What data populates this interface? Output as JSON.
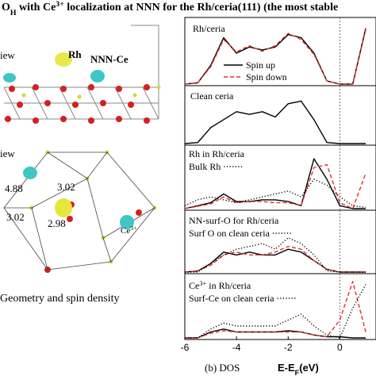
{
  "title_parts": [
    {
      "text": "O"
    },
    {
      "text": "H",
      "style": "sub"
    },
    {
      "text": " with Ce"
    },
    {
      "text": "3+",
      "style": "sup"
    },
    {
      "text": " localization at NNN for the Rh/ceria(111) (the most stable"
    }
  ],
  "structure": {
    "side_view": "iew",
    "rh": "Rh",
    "nnn_ce": "NNN-Ce",
    "top_view": "iew",
    "d1": "4.88",
    "d2": "3.02",
    "d3": "3.02",
    "d4": "2.98",
    "ce_parts": [
      {
        "text": "Ce"
      },
      {
        "text": "3+",
        "style": "sup"
      }
    ],
    "caption": "Geometry and spin density"
  },
  "dos_caption": "(b) DOS",
  "x_label_parts": [
    {
      "text": "E-E"
    },
    {
      "text": "F",
      "style": "sub"
    },
    {
      "text": "(eV)"
    }
  ],
  "chart_data": [
    {
      "type": "line",
      "label_parts": [
        {
          "text": "Rh/ceria"
        }
      ],
      "xlim": [
        -6,
        1.4
      ],
      "ylim": [
        0,
        1
      ],
      "vline": 0,
      "x": [
        -6,
        -5.5,
        -5,
        -4.5,
        -4,
        -3.5,
        -3,
        -2.5,
        -2,
        -1.5,
        -1,
        -0.5,
        0,
        0.5,
        1
      ],
      "series": [
        {
          "name": "Spin up",
          "color": "#000000",
          "dash": "solid",
          "values": [
            0,
            0.02,
            0.3,
            0.75,
            0.5,
            0.6,
            0.55,
            0.6,
            0.8,
            0.75,
            0.5,
            0.05,
            0,
            0,
            0.9
          ]
        },
        {
          "name": "Spin down",
          "color": "#e0302a",
          "dash": "dashed",
          "values": [
            0,
            0.02,
            0.28,
            0.72,
            0.52,
            0.62,
            0.53,
            0.62,
            0.82,
            0.72,
            0.48,
            0.05,
            0,
            0,
            0.88
          ]
        }
      ]
    },
    {
      "type": "line",
      "label_parts": [
        {
          "text": "Clean ceria"
        }
      ],
      "xlim": [
        -6,
        1.4
      ],
      "ylim": [
        0,
        1
      ],
      "vline": 0,
      "x": [
        -6,
        -5.5,
        -5,
        -4.5,
        -4,
        -3.5,
        -3,
        -2.5,
        -2,
        -1.5,
        -1,
        -0.5,
        0,
        0.5,
        1
      ],
      "series": [
        {
          "color": "#000000",
          "dash": "solid",
          "values": [
            0,
            0.02,
            0.3,
            0.45,
            0.6,
            0.55,
            0.6,
            0.5,
            0.75,
            0.8,
            0.45,
            0.02,
            0,
            0,
            0
          ]
        }
      ]
    },
    {
      "type": "line",
      "label_parts": [
        {
          "text": "Rh in Rh/ceria"
        }
      ],
      "legend": [
        "Bulk Rh"
      ],
      "xlim": [
        -6,
        1.4
      ],
      "ylim": [
        0,
        1
      ],
      "vline": 0,
      "x": [
        -6,
        -5.5,
        -5,
        -4.5,
        -4,
        -3.5,
        -3,
        -2.5,
        -2,
        -1.5,
        -1,
        -0.5,
        0,
        0.5,
        1
      ],
      "series": [
        {
          "color": "#000000",
          "dash": "solid",
          "values": [
            0,
            0.05,
            0.1,
            0.25,
            0.12,
            0.12,
            0.15,
            0.15,
            0.12,
            0.05,
            0.85,
            0.5,
            0.05,
            0,
            0
          ]
        },
        {
          "color": "#e0302a",
          "dash": "dashed",
          "values": [
            0,
            0.04,
            0.08,
            0.2,
            0.1,
            0.12,
            0.12,
            0.1,
            0.1,
            0.05,
            0.7,
            0.75,
            0.1,
            0,
            0.6
          ]
        },
        {
          "name": "Bulk Rh",
          "color": "#000000",
          "dash": "dotted",
          "values": [
            0.05,
            0.15,
            0.2,
            0.15,
            0.1,
            0.15,
            0.2,
            0.25,
            0.3,
            0.2,
            0.5,
            0.4,
            0.2,
            0.05,
            0.02
          ]
        }
      ]
    },
    {
      "type": "line",
      "label_parts": [
        {
          "text": "NN-surf-O for Rh/ceria"
        }
      ],
      "xlim": [
        -6,
        1.4
      ],
      "ylim": [
        0,
        1
      ],
      "vline": 0,
      "x": [
        -6,
        -5.5,
        -5,
        -4.5,
        -4,
        -3.5,
        -3,
        -2.5,
        -2,
        -1.5,
        -1,
        -0.5,
        0,
        0.5,
        1
      ],
      "series": [
        {
          "color": "#000000",
          "dash": "solid",
          "values": [
            0,
            0.02,
            0.15,
            0.35,
            0.3,
            0.35,
            0.3,
            0.3,
            0.4,
            0.35,
            0.2,
            0.05,
            0,
            0,
            0
          ]
        },
        {
          "color": "#e0302a",
          "dash": "dashed",
          "values": [
            0,
            0.02,
            0.12,
            0.3,
            0.35,
            0.3,
            0.3,
            0.35,
            0.45,
            0.4,
            0.2,
            0.05,
            0,
            0,
            0
          ]
        },
        {
          "name": "Surf O on clean ceria",
          "color": "#000000",
          "dash": "dotted",
          "values": [
            0,
            0,
            0.15,
            0.3,
            0.4,
            0.45,
            0.5,
            0.4,
            0.6,
            0.5,
            0.3,
            0.02,
            0,
            0,
            0
          ]
        }
      ]
    },
    {
      "type": "line",
      "label_parts": [
        {
          "text": "Ce"
        },
        {
          "text": "3+",
          "style": "sup"
        },
        {
          "text": " in Rh/ceria"
        }
      ],
      "xlim": [
        -6,
        1.4
      ],
      "ylim": [
        0,
        1
      ],
      "vline": 0,
      "xticks": [
        -6,
        -4,
        -2,
        0
      ],
      "x": [
        -6,
        -5.5,
        -5,
        -4.5,
        -4,
        -3.5,
        -3,
        -2.5,
        -2,
        -1.5,
        -1,
        -0.5,
        0,
        0.5,
        1
      ],
      "series": [
        {
          "color": "#000000",
          "dash": "solid",
          "values": [
            0,
            0,
            0.1,
            0.15,
            0.1,
            0.1,
            0.1,
            0.1,
            0.12,
            0.1,
            0.05,
            0.02,
            0.02,
            0,
            0
          ]
        },
        {
          "color": "#e0302a",
          "dash": "dashed",
          "values": [
            0,
            0,
            0.08,
            0.12,
            0.1,
            0.1,
            0.1,
            0.1,
            0.1,
            0.1,
            0.05,
            0.02,
            0.3,
            0.95,
            0.1
          ]
        },
        {
          "name": "Surf-Ce on clean ceria",
          "color": "#000000",
          "dash": "dotted",
          "values": [
            0,
            0,
            0.15,
            0.25,
            0.2,
            0.2,
            0.2,
            0.2,
            0.3,
            0.4,
            0.2,
            0.05,
            0,
            0.5,
            0.9
          ]
        }
      ]
    }
  ]
}
